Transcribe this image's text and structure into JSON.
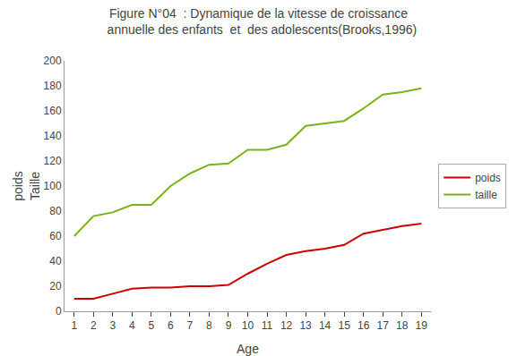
{
  "chart_data": {
    "type": "line",
    "title": "Figure N°04  : Dynamique de la vitesse de croissance",
    "subtitle": "  annuelle des enfants  et  des adolescents(Brooks,1996)",
    "xlabel": "Age",
    "ylabel": "poids\nTaille",
    "x": [
      1,
      2,
      3,
      4,
      5,
      6,
      7,
      8,
      9,
      10,
      11,
      12,
      13,
      14,
      15,
      16,
      17,
      18,
      19
    ],
    "series": [
      {
        "name": "poids",
        "color": "#cc0000",
        "values": [
          10,
          10,
          14,
          18,
          19,
          19,
          20,
          20,
          21,
          30,
          38,
          45,
          48,
          50,
          53,
          62,
          65,
          68,
          70
        ]
      },
      {
        "name": "taille",
        "color": "#7ab317",
        "values": [
          60,
          76,
          79,
          85,
          85,
          100,
          110,
          117,
          118,
          129,
          129,
          133,
          148,
          150,
          152,
          162,
          173,
          175,
          178
        ]
      }
    ],
    "xlim": [
      0.5,
      19.5
    ],
    "xticks": [
      1,
      2,
      3,
      4,
      5,
      6,
      7,
      8,
      9,
      10,
      11,
      12,
      13,
      14,
      15,
      16,
      17,
      18,
      19
    ],
    "ylim": [
      0,
      200
    ],
    "yticks": [
      0,
      20,
      40,
      60,
      80,
      100,
      120,
      140,
      160,
      180,
      200
    ],
    "grid": false,
    "legend": "right"
  }
}
